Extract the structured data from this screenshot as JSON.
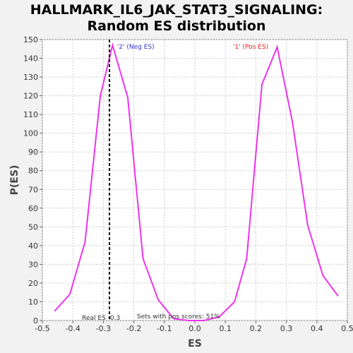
{
  "chart_data": {
    "type": "line",
    "title": "HALLMARK_IL6_JAK_STAT3_SIGNALING:",
    "subtitle": "Random ES distribution",
    "xlabel": "ES",
    "ylabel": "P(ES)",
    "xlim": [
      -0.5,
      0.5
    ],
    "ylim": [
      0,
      150
    ],
    "xticks": [
      "-0.5",
      "-0.4",
      "-0.3",
      "-0.2",
      "-0.1",
      "0.0",
      "0.1",
      "0.2",
      "0.3",
      "0.4",
      "0.5"
    ],
    "yticks": [
      "0",
      "10",
      "20",
      "30",
      "40",
      "50",
      "60",
      "70",
      "80",
      "90",
      "100",
      "110",
      "120",
      "130",
      "140",
      "150"
    ],
    "grid": true,
    "line_color": "#ee33ee",
    "series": [
      {
        "x": [
          -0.46,
          -0.41,
          -0.36,
          -0.31,
          -0.27,
          -0.22,
          -0.17,
          -0.12,
          -0.07,
          -0.02,
          0.03,
          0.08,
          0.13,
          0.17,
          0.22,
          0.27,
          0.32,
          0.37,
          0.42,
          0.47
        ],
        "y": [
          5,
          14,
          42,
          120,
          147,
          119,
          33,
          11,
          1,
          0,
          0,
          2,
          10,
          33,
          126,
          146,
          106,
          51,
          24,
          13
        ]
      }
    ],
    "real_es_marker": {
      "x": -0.28,
      "label": "Real ES -0.3"
    },
    "annotations": {
      "neg_label": "'2' (Neg ES)",
      "pos_label": "'1' (Pos ES)",
      "sets_label": "Sets with pos scores: 51%",
      "neg_color": "#3333cc",
      "pos_color": "#dd2222"
    }
  }
}
